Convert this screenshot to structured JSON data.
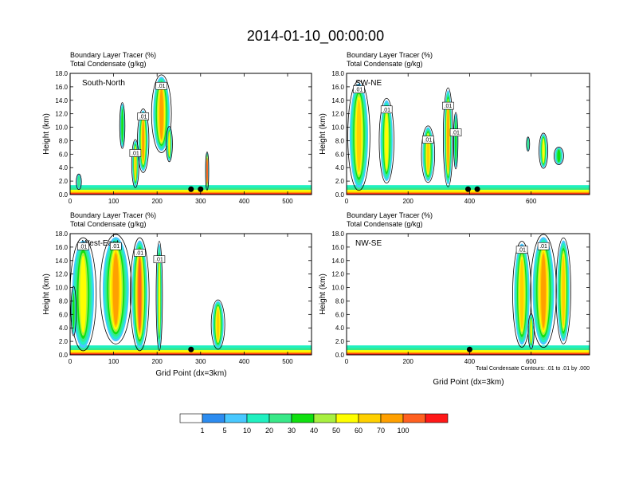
{
  "title": "2014-01-10_00:00:00",
  "footnote": "Total Condensate Contours: .01 to .01 by .000",
  "palette": [
    "#ffffff",
    "#2c8cf0",
    "#48c8ff",
    "#20f0c0",
    "#38e888",
    "#10e010",
    "#a8f040",
    "#ffff00",
    "#ffd000",
    "#ffa000",
    "#ff6020",
    "#ff1818"
  ],
  "colorbar": {
    "labels": [
      "1",
      "5",
      "10",
      "20",
      "30",
      "40",
      "50",
      "60",
      "70",
      "100"
    ]
  },
  "chart_data": [
    {
      "type": "heatmap",
      "panel_label": "South-North",
      "title_lines": [
        "Boundary Layer Tracer    (%)",
        "Total Condensate    (g/kg)"
      ],
      "ylabel": "Height (km)",
      "xlabel": "",
      "xlim": [
        0,
        555
      ],
      "ylim": [
        0,
        18
      ],
      "xticks": [
        "0",
        "100",
        "200",
        "300",
        "400",
        "500"
      ],
      "yticks": [
        "0.0",
        "2.0",
        "4.0",
        "6.0",
        "8.0",
        "10.0",
        "12.0",
        "14.0",
        "16.0",
        "18.0"
      ],
      "contour_labels": [
        ".01",
        ".01",
        ".01"
      ],
      "marker_x": [
        278,
        300
      ],
      "plumes": [
        {
          "x": 168,
          "ybot": 3.5,
          "ytop": 12.5,
          "w": 22,
          "peak": 8
        },
        {
          "x": 210,
          "ybot": 6.5,
          "ytop": 17.5,
          "w": 38,
          "peak": 8
        },
        {
          "x": 150,
          "ybot": 1.2,
          "ytop": 8.0,
          "w": 14,
          "peak": 7
        },
        {
          "x": 120,
          "ybot": 7.0,
          "ytop": 13.5,
          "w": 10,
          "peak": 4
        },
        {
          "x": 228,
          "ybot": 5.0,
          "ytop": 10.0,
          "w": 12,
          "peak": 6
        },
        {
          "x": 315,
          "ybot": 0.8,
          "ytop": 6.2,
          "w": 5,
          "peak": 9
        },
        {
          "x": 20,
          "ybot": 0.8,
          "ytop": 3.0,
          "w": 10,
          "peak": 3
        }
      ]
    },
    {
      "type": "heatmap",
      "panel_label": "SW-NE",
      "title_lines": [
        "Boundary Layer Tracer    (%)",
        "Total Condensate    (g/kg)"
      ],
      "ylabel": "Height (km)",
      "xlabel": "",
      "xlim": [
        0,
        790
      ],
      "ylim": [
        0,
        18
      ],
      "xticks": [
        "0",
        "200",
        "400",
        "600"
      ],
      "yticks": [
        "0.0",
        "2.0",
        "4.0",
        "6.0",
        "8.0",
        "10.0",
        "12.0",
        "14.0",
        "16.0",
        "18.0"
      ],
      "contour_labels": [
        ".01",
        ".01",
        ".01",
        ".01",
        ".01"
      ],
      "marker_x": [
        395,
        425
      ],
      "plumes": [
        {
          "x": 40,
          "ybot": 1.0,
          "ytop": 16.5,
          "w": 60,
          "peak": 7
        },
        {
          "x": 130,
          "ybot": 2.0,
          "ytop": 14.0,
          "w": 40,
          "peak": 6
        },
        {
          "x": 265,
          "ybot": 2.0,
          "ytop": 10.0,
          "w": 36,
          "peak": 7
        },
        {
          "x": 330,
          "ybot": 1.5,
          "ytop": 15.5,
          "w": 26,
          "peak": 8
        },
        {
          "x": 355,
          "ybot": 4.0,
          "ytop": 12.0,
          "w": 12,
          "peak": 4
        },
        {
          "x": 640,
          "ybot": 4.0,
          "ytop": 9.0,
          "w": 24,
          "peak": 6
        },
        {
          "x": 690,
          "ybot": 4.5,
          "ytop": 7.0,
          "w": 26,
          "peak": 4
        },
        {
          "x": 590,
          "ybot": 6.5,
          "ytop": 8.5,
          "w": 8,
          "peak": 3
        }
      ]
    },
    {
      "type": "heatmap",
      "panel_label": "West-East",
      "title_lines": [
        "Boundary Layer Tracer    (%)",
        "Total Condensate    (g/kg)"
      ],
      "ylabel": "Height (km)",
      "xlabel": "Grid Point (dx=3km)",
      "xlim": [
        0,
        555
      ],
      "ylim": [
        0,
        18
      ],
      "xticks": [
        "0",
        "100",
        "200",
        "300",
        "400",
        "500"
      ],
      "yticks": [
        "0.0",
        "2.0",
        "4.0",
        "6.0",
        "8.0",
        "10.0",
        "12.0",
        "14.0",
        "16.0",
        "18.0"
      ],
      "contour_labels": [
        ".01",
        ".01",
        ".01",
        ".01"
      ],
      "marker_x": [
        278
      ],
      "plumes": [
        {
          "x": 30,
          "ybot": 1.0,
          "ytop": 17.0,
          "w": 50,
          "peak": 6
        },
        {
          "x": 105,
          "ybot": 2.0,
          "ytop": 17.5,
          "w": 60,
          "peak": 8
        },
        {
          "x": 160,
          "ybot": 1.0,
          "ytop": 17.0,
          "w": 36,
          "peak": 9
        },
        {
          "x": 205,
          "ybot": 1.0,
          "ytop": 16.5,
          "w": 12,
          "peak": 6
        },
        {
          "x": 340,
          "ybot": 1.0,
          "ytop": 8.0,
          "w": 26,
          "peak": 7
        },
        {
          "x": 8,
          "ybot": 3.0,
          "ytop": 10.0,
          "w": 10,
          "peak": 4
        }
      ]
    },
    {
      "type": "heatmap",
      "panel_label": "NW-SE",
      "title_lines": [
        "Boundary Layer Tracer    (%)",
        "Total Condensate    (g/kg)"
      ],
      "ylabel": "Height (km)",
      "xlabel": "Grid Point (dx=3km)",
      "xlim": [
        0,
        790
      ],
      "ylim": [
        0,
        18
      ],
      "xticks": [
        "0",
        "200",
        "400",
        "600"
      ],
      "yticks": [
        "0.0",
        "2.0",
        "4.0",
        "6.0",
        "8.0",
        "10.0",
        "12.0",
        "14.0",
        "16.0",
        "18.0"
      ],
      "contour_labels": [
        ".01",
        ".01"
      ],
      "marker_x": [
        400
      ],
      "plumes": [
        {
          "x": 570,
          "ybot": 1.5,
          "ytop": 16.5,
          "w": 50,
          "peak": 7
        },
        {
          "x": 640,
          "ybot": 1.5,
          "ytop": 17.5,
          "w": 70,
          "peak": 8
        },
        {
          "x": 705,
          "ybot": 2.0,
          "ytop": 17.0,
          "w": 40,
          "peak": 7
        },
        {
          "x": 600,
          "ybot": 1.0,
          "ytop": 6.0,
          "w": 16,
          "peak": 6
        }
      ]
    }
  ]
}
